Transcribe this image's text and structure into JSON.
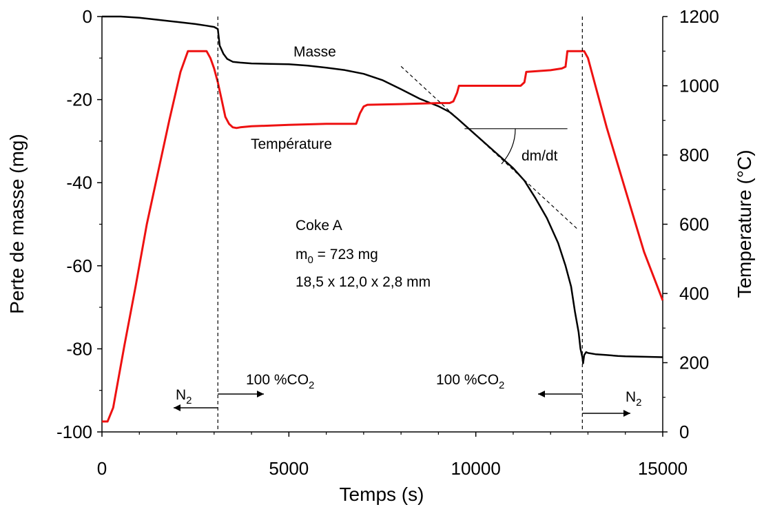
{
  "chart_data": {
    "type": "line",
    "title": "",
    "xlabel": "Temps (s)",
    "ylabel": "Perte de masse (mg)",
    "y2label": "Temperature (°C)",
    "xlim": [
      0,
      15000
    ],
    "ylim": [
      -100,
      0
    ],
    "y2lim": [
      0,
      1200
    ],
    "xticks": [
      "0",
      "5000",
      "10000",
      "15000"
    ],
    "yticks": [
      "0",
      "-20",
      "-40",
      "-60",
      "-80",
      "-100"
    ],
    "y2ticks": [
      "1200",
      "1000",
      "800",
      "600",
      "400",
      "200",
      "0"
    ],
    "x_tick_values": [
      0,
      5000,
      10000,
      15000
    ],
    "y_tick_values": [
      0,
      -20,
      -40,
      -60,
      -80,
      -100
    ],
    "y2_tick_values": [
      1200,
      1000,
      800,
      600,
      400,
      200,
      0
    ],
    "grid": false,
    "series": [
      {
        "name": "Masse",
        "axis": "left",
        "color": "#000000",
        "x": [
          0,
          500,
          1000,
          1500,
          2000,
          2500,
          2800,
          3000,
          3100,
          3150,
          3250,
          3350,
          3500,
          3700,
          4000,
          4500,
          5000,
          5500,
          6000,
          6500,
          7000,
          7500,
          8000,
          8500,
          9000,
          9300,
          9500,
          10000,
          10500,
          11000,
          11300,
          11600,
          11900,
          12200,
          12400,
          12550,
          12650,
          12750,
          12800,
          12850,
          12870,
          12900,
          12950,
          13000,
          13200,
          13500,
          13800,
          14000,
          14500,
          15000
        ],
        "y": [
          0,
          0,
          -0.3,
          -0.8,
          -1.3,
          -1.8,
          -2.2,
          -2.5,
          -3,
          -7,
          -9,
          -10.2,
          -10.9,
          -11.1,
          -11.3,
          -11.4,
          -11.5,
          -11.8,
          -12.3,
          -12.9,
          -13.8,
          -15.3,
          -17.5,
          -19.8,
          -21.6,
          -23,
          -24.5,
          -28.5,
          -32.5,
          -36.5,
          -39.5,
          -43.8,
          -48.5,
          -54.5,
          -60,
          -65,
          -71,
          -76,
          -80,
          -82,
          -83.5,
          -81.5,
          -80.8,
          -81,
          -81.3,
          -81.5,
          -81.7,
          -81.8,
          -81.9,
          -82
        ]
      },
      {
        "name": "Température",
        "axis": "right",
        "color": "#ee1111",
        "x": [
          0,
          150,
          300,
          600,
          900,
          1200,
          1500,
          1800,
          2100,
          2300,
          2350,
          2800,
          2900,
          3000,
          3100,
          3200,
          3300,
          3400,
          3500,
          3600,
          3700,
          4000,
          5000,
          6000,
          6800,
          6900,
          7000,
          7100,
          8000,
          9000,
          9300,
          9400,
          9500,
          9550,
          10000,
          11000,
          11200,
          11300,
          11350,
          12000,
          12300,
          12400,
          12450,
          12900,
          13000,
          13200,
          13500,
          14000,
          14500,
          15000
        ],
        "y": [
          30,
          30,
          70,
          250,
          420,
          600,
          750,
          900,
          1040,
          1100,
          1100,
          1100,
          1080,
          1050,
          1010,
          960,
          910,
          890,
          880,
          878,
          880,
          883,
          887,
          890,
          890,
          920,
          940,
          945,
          947,
          950,
          950,
          955,
          980,
          1000,
          1000,
          1000,
          1000,
          1010,
          1040,
          1045,
          1050,
          1055,
          1100,
          1100,
          1080,
          1000,
          880,
          700,
          520,
          380
        ]
      }
    ],
    "annotations": {
      "masse_label": "Masse",
      "temperature_label": "Température",
      "dmdt_label": "dm/dt",
      "sample_name": "Coke A",
      "m0_prefix": "m",
      "m0_sub": "0",
      "m0_value": " = 723 mg",
      "dimensions": "18,5 x 12,0 x 2,8 mm",
      "n2_main": "N",
      "n2_sub": "2",
      "co2_prefix": "100 %CO",
      "co2_sub": "2",
      "switch_times": [
        3100,
        12850
      ],
      "tangent": {
        "x": [
          8000,
          12700
        ],
        "y": [
          -12,
          -51
        ]
      },
      "dmdt_reference": {
        "x": [
          9700,
          12450
        ],
        "y": -27
      }
    }
  }
}
